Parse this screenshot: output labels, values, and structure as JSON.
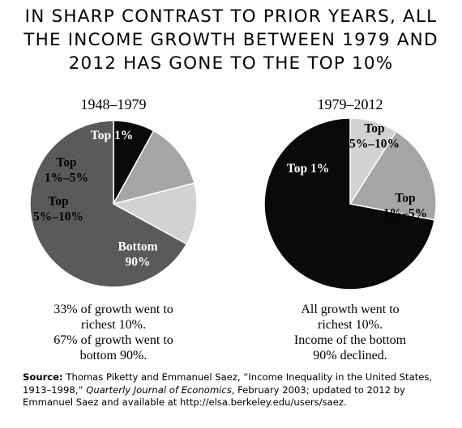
{
  "title_lines": [
    "IN SHARP CONTRAST TO PRIOR YEARS, ALL",
    "THE INCOME GROWTH BETWEEN 1979 AND",
    "2012 HAS GONE TO THE TOP 10%"
  ],
  "chart_data": [
    {
      "type": "pie",
      "title": "1948–1979",
      "slices": [
        {
          "label_lines": [
            "Top 1%"
          ],
          "value": 8,
          "color": "#0a0a0a",
          "text_color": "#ffffff"
        },
        {
          "label_lines": [
            "Top",
            "1%–5%"
          ],
          "value": 13,
          "color": "#a5a5a5",
          "text_color": "#000000"
        },
        {
          "label_lines": [
            "Top",
            "5%–10%"
          ],
          "value": 12,
          "color": "#d2d2d2",
          "text_color": "#000000"
        },
        {
          "label_lines": [
            "Bottom",
            "90%"
          ],
          "value": 67,
          "color": "#5a5a5a",
          "text_color": "#ffffff"
        }
      ],
      "caption_lines": [
        "33% of growth went to",
        "richest 10%.",
        "67% of growth went to",
        "bottom 90%."
      ]
    },
    {
      "type": "pie",
      "title": "1979–2012",
      "slices": [
        {
          "label_lines": [
            "Top",
            "5%–10%"
          ],
          "value": 9,
          "color": "#d2d2d2",
          "text_color": "#000000"
        },
        {
          "label_lines": [
            "Top",
            "1%–5%"
          ],
          "value": 19,
          "color": "#a5a5a5",
          "text_color": "#000000"
        },
        {
          "label_lines": [
            "Top 1%"
          ],
          "value": 72,
          "color": "#0a0a0a",
          "text_color": "#ffffff"
        }
      ],
      "caption_lines": [
        "All growth went to",
        "richest 10%.",
        "Income of the bottom",
        "90% declined."
      ]
    }
  ],
  "source": {
    "label": "Source:",
    "text_before": "Thomas Piketty and Emmanuel Saez, “Income Inequality in the United States, 1913–1998,”",
    "journal": "Quarterly Journal of Economics",
    "text_after": ", February 2003; updated to 2012 by Emmanuel Saez and available at http://elsa.berkeley.edu/users/saez."
  }
}
